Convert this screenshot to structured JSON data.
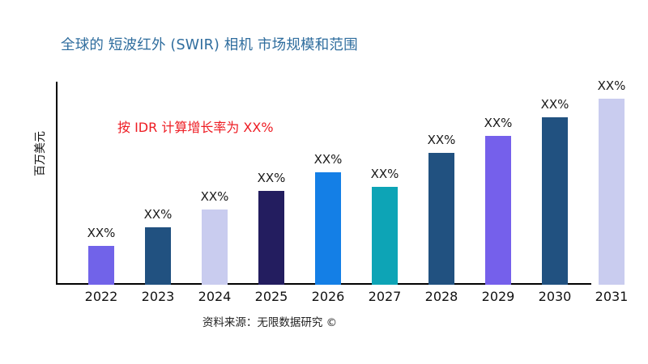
{
  "colors": {
    "title": "#2F6D9E",
    "annotation": "#EE1C23",
    "axis": "#000000",
    "label_text": "#1A1A1A"
  },
  "chart_data": {
    "type": "bar",
    "title": "全球的 短波红外 (SWIR) 相机 市场规模和范围",
    "ylabel": "百万美元",
    "xlabel": "",
    "annotation": "按 IDR 计算增长率为 XX%",
    "source": "资料来源：无限数据研究 ©",
    "grid": false,
    "legend": "none",
    "ylim": [
      0,
      250
    ],
    "categories": [
      "2022",
      "2023",
      "2024",
      "2025",
      "2026",
      "2027",
      "2028",
      "2029",
      "2030",
      "2031"
    ],
    "values": [
      48,
      71,
      93,
      116,
      139,
      121,
      163,
      184,
      207,
      230
    ],
    "value_labels": [
      "XX%",
      "XX%",
      "XX%",
      "XX%",
      "XX%",
      "XX%",
      "XX%",
      "XX%",
      "XX%",
      "XX%"
    ],
    "bar_colors": [
      "#7163E9",
      "#215180",
      "#C9CCEF",
      "#231D5F",
      "#147FE6",
      "#0DA4B6",
      "#215180",
      "#7560EB",
      "#215180",
      "#C9CCEF"
    ]
  }
}
